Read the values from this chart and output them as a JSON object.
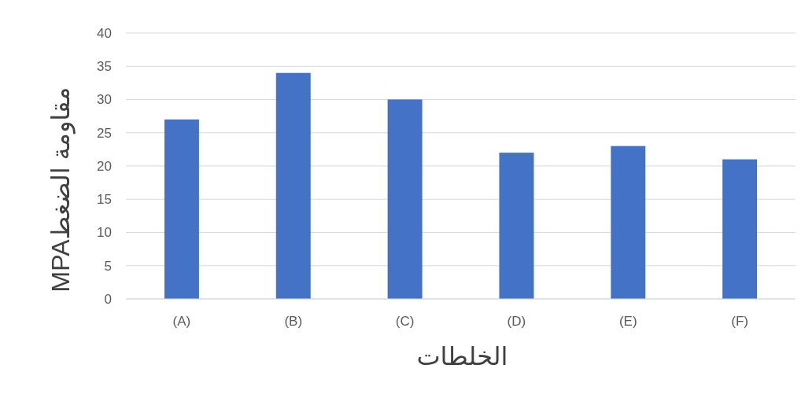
{
  "chart_data": {
    "type": "bar",
    "categories": [
      "(A)",
      "(B)",
      "(C)",
      "(D)",
      "(E)",
      "(F)"
    ],
    "values": [
      27,
      34,
      30,
      22,
      23,
      21
    ],
    "color": "#4472c4",
    "ylim": [
      0,
      40
    ],
    "yticks": [
      0,
      5,
      10,
      15,
      20,
      25,
      30,
      35,
      40
    ],
    "grid": "y",
    "xlabel": "الخلطات",
    "ylabel": "مقاومة الضغطMPA"
  }
}
